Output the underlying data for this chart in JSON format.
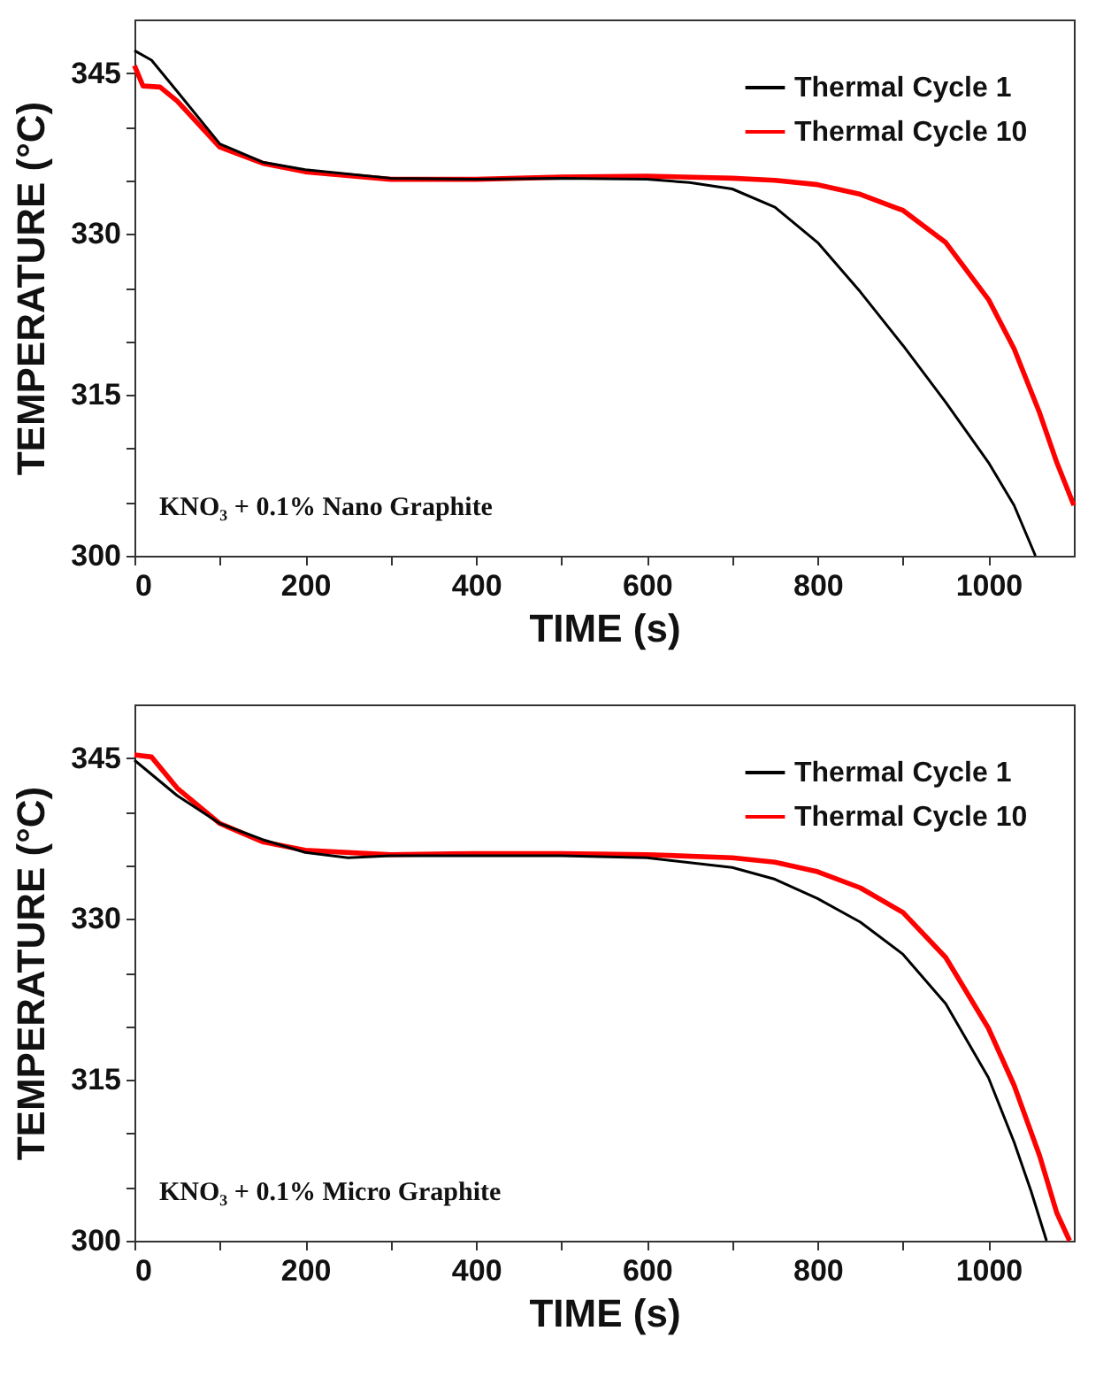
{
  "chart_data": [
    {
      "type": "line",
      "xlabel": "TIME (s)",
      "ylabel": "TEMPERATURE (°C)",
      "annotations": [
        "KNO₃ + 0.1% Nano Graphite"
      ],
      "xlim": [
        0,
        1100
      ],
      "ylim": [
        300,
        350
      ],
      "xticks": [
        0,
        {
          "value": 100,
          "label": null
        },
        200,
        {
          "value": 300,
          "label": null
        },
        400,
        {
          "value": 500,
          "label": null
        },
        600,
        {
          "value": 700,
          "label": null
        },
        800,
        {
          "value": 900,
          "label": null
        },
        1000
      ],
      "yticks": [
        300,
        {
          "value": 305,
          "label": null
        },
        {
          "value": 310,
          "label": null
        },
        315,
        {
          "value": 320,
          "label": null
        },
        {
          "value": 325,
          "label": null
        },
        330,
        {
          "value": 335,
          "label": null
        },
        {
          "value": 340,
          "label": null
        },
        345
      ],
      "grid": false,
      "legend": "top right",
      "line_style": "solid",
      "marker": "none",
      "series": [
        {
          "name": "Thermal Cycle 1",
          "color": "#000000",
          "x": [
            0,
            20,
            50,
            100,
            150,
            200,
            300,
            400,
            500,
            600,
            650,
            700,
            750,
            800,
            850,
            900,
            950,
            1000,
            1030,
            1055
          ],
          "values": [
            347.1,
            346.2,
            343.3,
            338.4,
            336.7,
            336.0,
            335.2,
            335.1,
            335.2,
            335.1,
            334.8,
            334.2,
            332.5,
            329.2,
            324.6,
            319.6,
            314.3,
            308.7,
            304.7,
            300.0
          ]
        },
        {
          "name": "Thermal Cycle 10",
          "color": "#ff0000",
          "x": [
            0,
            10,
            30,
            50,
            100,
            150,
            200,
            300,
            400,
            500,
            600,
            700,
            750,
            800,
            850,
            900,
            950,
            1000,
            1030,
            1060,
            1080,
            1100
          ],
          "values": [
            345.7,
            343.8,
            343.7,
            342.4,
            338.1,
            336.6,
            335.8,
            335.1,
            335.1,
            335.3,
            335.4,
            335.2,
            335.0,
            334.6,
            333.7,
            332.2,
            329.2,
            323.9,
            319.3,
            313.3,
            308.7,
            304.7
          ]
        }
      ]
    },
    {
      "type": "line",
      "xlabel": "TIME (s)",
      "ylabel": "TEMPERATURE (°C)",
      "annotations": [
        "KNO₃ + 0.1% Micro Graphite"
      ],
      "xlim": [
        0,
        1100
      ],
      "ylim": [
        300,
        350
      ],
      "xticks": [
        0,
        {
          "value": 100,
          "label": null
        },
        200,
        {
          "value": 300,
          "label": null
        },
        400,
        {
          "value": 500,
          "label": null
        },
        600,
        {
          "value": 700,
          "label": null
        },
        800,
        {
          "value": 900,
          "label": null
        },
        1000
      ],
      "yticks": [
        300,
        {
          "value": 305,
          "label": null
        },
        {
          "value": 310,
          "label": null
        },
        315,
        {
          "value": 320,
          "label": null
        },
        {
          "value": 325,
          "label": null
        },
        330,
        {
          "value": 335,
          "label": null
        },
        {
          "value": 340,
          "label": null
        },
        345
      ],
      "grid": false,
      "legend": "top right",
      "line_style": "solid",
      "marker": "none",
      "series": [
        {
          "name": "Thermal Cycle 1",
          "color": "#000000",
          "x": [
            0,
            50,
            100,
            150,
            200,
            250,
            300,
            400,
            500,
            600,
            700,
            750,
            800,
            850,
            900,
            950,
            1000,
            1030,
            1050,
            1068
          ],
          "values": [
            344.8,
            341.5,
            338.9,
            337.4,
            336.2,
            335.7,
            335.9,
            335.9,
            335.9,
            335.7,
            334.8,
            333.7,
            331.9,
            329.7,
            326.7,
            322.1,
            315.2,
            309.2,
            304.6,
            300.0
          ]
        },
        {
          "name": "Thermal Cycle 10",
          "color": "#ff0000",
          "x": [
            0,
            20,
            50,
            100,
            150,
            200,
            300,
            400,
            500,
            600,
            700,
            750,
            800,
            850,
            900,
            950,
            1000,
            1030,
            1060,
            1080,
            1095
          ],
          "values": [
            345.3,
            345.1,
            342.2,
            338.9,
            337.2,
            336.4,
            336.0,
            336.1,
            336.1,
            336.0,
            335.7,
            335.3,
            334.4,
            332.9,
            330.6,
            326.4,
            319.8,
            314.5,
            307.9,
            302.6,
            300.0
          ]
        }
      ]
    }
  ]
}
